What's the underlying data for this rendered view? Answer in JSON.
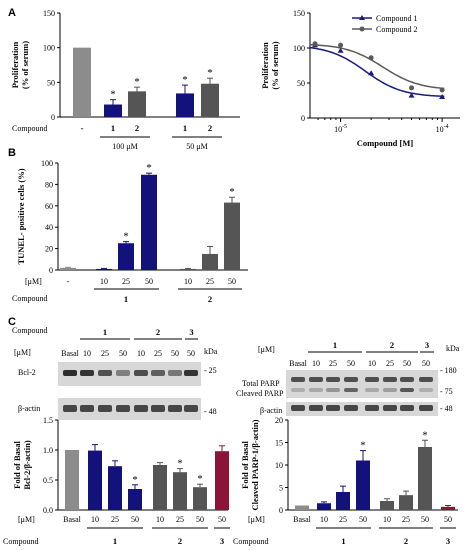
{
  "colors": {
    "grey_light": "#8c8c8c",
    "navy": "#13127a",
    "grey_dark": "#555555",
    "maroon": "#8a1538",
    "compound1_line": "#1a1a80",
    "compound2_line": "#5a5a5a"
  },
  "panels": {
    "A": "A",
    "B": "B",
    "C": "C"
  },
  "chart_data": [
    {
      "id": "A-left",
      "type": "bar",
      "ylabel": "Proliferation\n(% of serum)",
      "ylim": [
        0,
        150
      ],
      "yticks": [
        "0",
        "50",
        "100",
        "150"
      ],
      "row_label": "Compound",
      "categories": [
        "-",
        "1",
        "2",
        "1",
        "2"
      ],
      "group_labels": [
        "100 μM",
        "50 μM"
      ],
      "values": [
        100,
        18,
        37,
        34,
        48
      ],
      "errors": [
        0,
        7,
        6,
        12,
        8
      ],
      "significant": [
        false,
        true,
        true,
        true,
        true
      ],
      "star": "*"
    },
    {
      "id": "A-right",
      "type": "line",
      "ylabel": "Proliferation\n(% of serum)",
      "xlabel": "Compound [M]",
      "ylim": [
        0,
        150
      ],
      "yticks": [
        "0",
        "50",
        "100",
        "150"
      ],
      "xscale": "log",
      "xlim": [
        5e-06,
        0.00015
      ],
      "xticks": [
        "10",
        "10"
      ],
      "xtick_exponents": [
        "-5",
        "-4"
      ],
      "legend_position": "top-right",
      "series": [
        {
          "name": "Compound 1",
          "x": [
            5.6e-06,
            1e-05,
            2e-05,
            5e-05,
            0.0001
          ],
          "y": [
            104,
            96,
            64,
            32,
            30
          ]
        },
        {
          "name": "Compound 2",
          "x": [
            5.6e-06,
            1e-05,
            2e-05,
            5e-05,
            0.0001
          ],
          "y": [
            106,
            104,
            86,
            43,
            40
          ]
        }
      ]
    },
    {
      "id": "B",
      "type": "bar",
      "ylabel": "TUNEL- positive cells (%)",
      "ylim": [
        0,
        100
      ],
      "yticks": [
        "0",
        "20",
        "40",
        "60",
        "80",
        "100"
      ],
      "conc_label": "[μM]",
      "row_label": "Compound",
      "categories": [
        "-",
        "10",
        "25",
        "50",
        "10",
        "25",
        "50"
      ],
      "group_labels": [
        "1",
        "2"
      ],
      "values": [
        2,
        1,
        25,
        89,
        1,
        15,
        63
      ],
      "errors": [
        0.5,
        0.5,
        1.5,
        1.5,
        0.5,
        7,
        5
      ],
      "significant": [
        false,
        false,
        true,
        true,
        false,
        false,
        true
      ],
      "star": "*"
    },
    {
      "id": "C-left",
      "type": "bar",
      "ylabel": "Fold of Basal\nBcl-2/β-actin)",
      "ylim": [
        0,
        1.5
      ],
      "yticks": [
        "0.0",
        "0.5",
        "1.0",
        "1.5"
      ],
      "conc_label": "[μM]",
      "row_label": "Compound",
      "categories": [
        "Basal",
        "10",
        "25",
        "50",
        "10",
        "25",
        "50",
        "50"
      ],
      "group_labels": [
        "1",
        "2",
        "3"
      ],
      "values": [
        1.0,
        0.99,
        0.73,
        0.35,
        0.75,
        0.63,
        0.38,
        0.98
      ],
      "errors": [
        0,
        0.1,
        0.09,
        0.07,
        0.04,
        0.06,
        0.05,
        0.09
      ],
      "significant": [
        false,
        false,
        false,
        true,
        false,
        true,
        true,
        false
      ],
      "star": "*"
    },
    {
      "id": "C-right",
      "type": "bar",
      "ylabel": "Fold of Basal\nCleaved PARP-1/β-actin)",
      "ylim": [
        0,
        20
      ],
      "yticks": [
        "0",
        "5",
        "10",
        "15",
        "20"
      ],
      "conc_label": "[μM]",
      "row_label": "Compound",
      "categories": [
        "Basal",
        "10",
        "25",
        "50",
        "10",
        "25",
        "50",
        "50"
      ],
      "group_labels": [
        "1",
        "2",
        "3"
      ],
      "values": [
        1,
        1.5,
        4,
        11,
        2,
        3.3,
        14,
        0.7
      ],
      "errors": [
        0,
        0.3,
        1.3,
        2.2,
        0.5,
        0.9,
        1.5,
        0.3
      ],
      "significant": [
        false,
        false,
        false,
        true,
        false,
        false,
        true,
        false
      ],
      "star": "*"
    }
  ],
  "blots": {
    "left": {
      "compound_label": "Compound",
      "conc_label": "[μM]",
      "group_labels": [
        "1",
        "2",
        "3"
      ],
      "lanes": [
        "Basal",
        "10",
        "25",
        "50",
        "10",
        "25",
        "50",
        "50"
      ],
      "kda": "kDa",
      "rows": [
        "Bcl-2",
        "β-actin"
      ],
      "markers": [
        "- 25",
        "- 48"
      ]
    },
    "right": {
      "conc_label": "[μM]",
      "group_labels": [
        "1",
        "2",
        "3"
      ],
      "lanes": [
        "Basal",
        "10",
        "25",
        "50",
        "10",
        "25",
        "50",
        "50"
      ],
      "kda": "kDa",
      "rows": [
        "Total PARP",
        "Cleaved PARP",
        "β-actin"
      ],
      "markers": [
        "- 180",
        "- 75",
        "- 48"
      ]
    }
  }
}
